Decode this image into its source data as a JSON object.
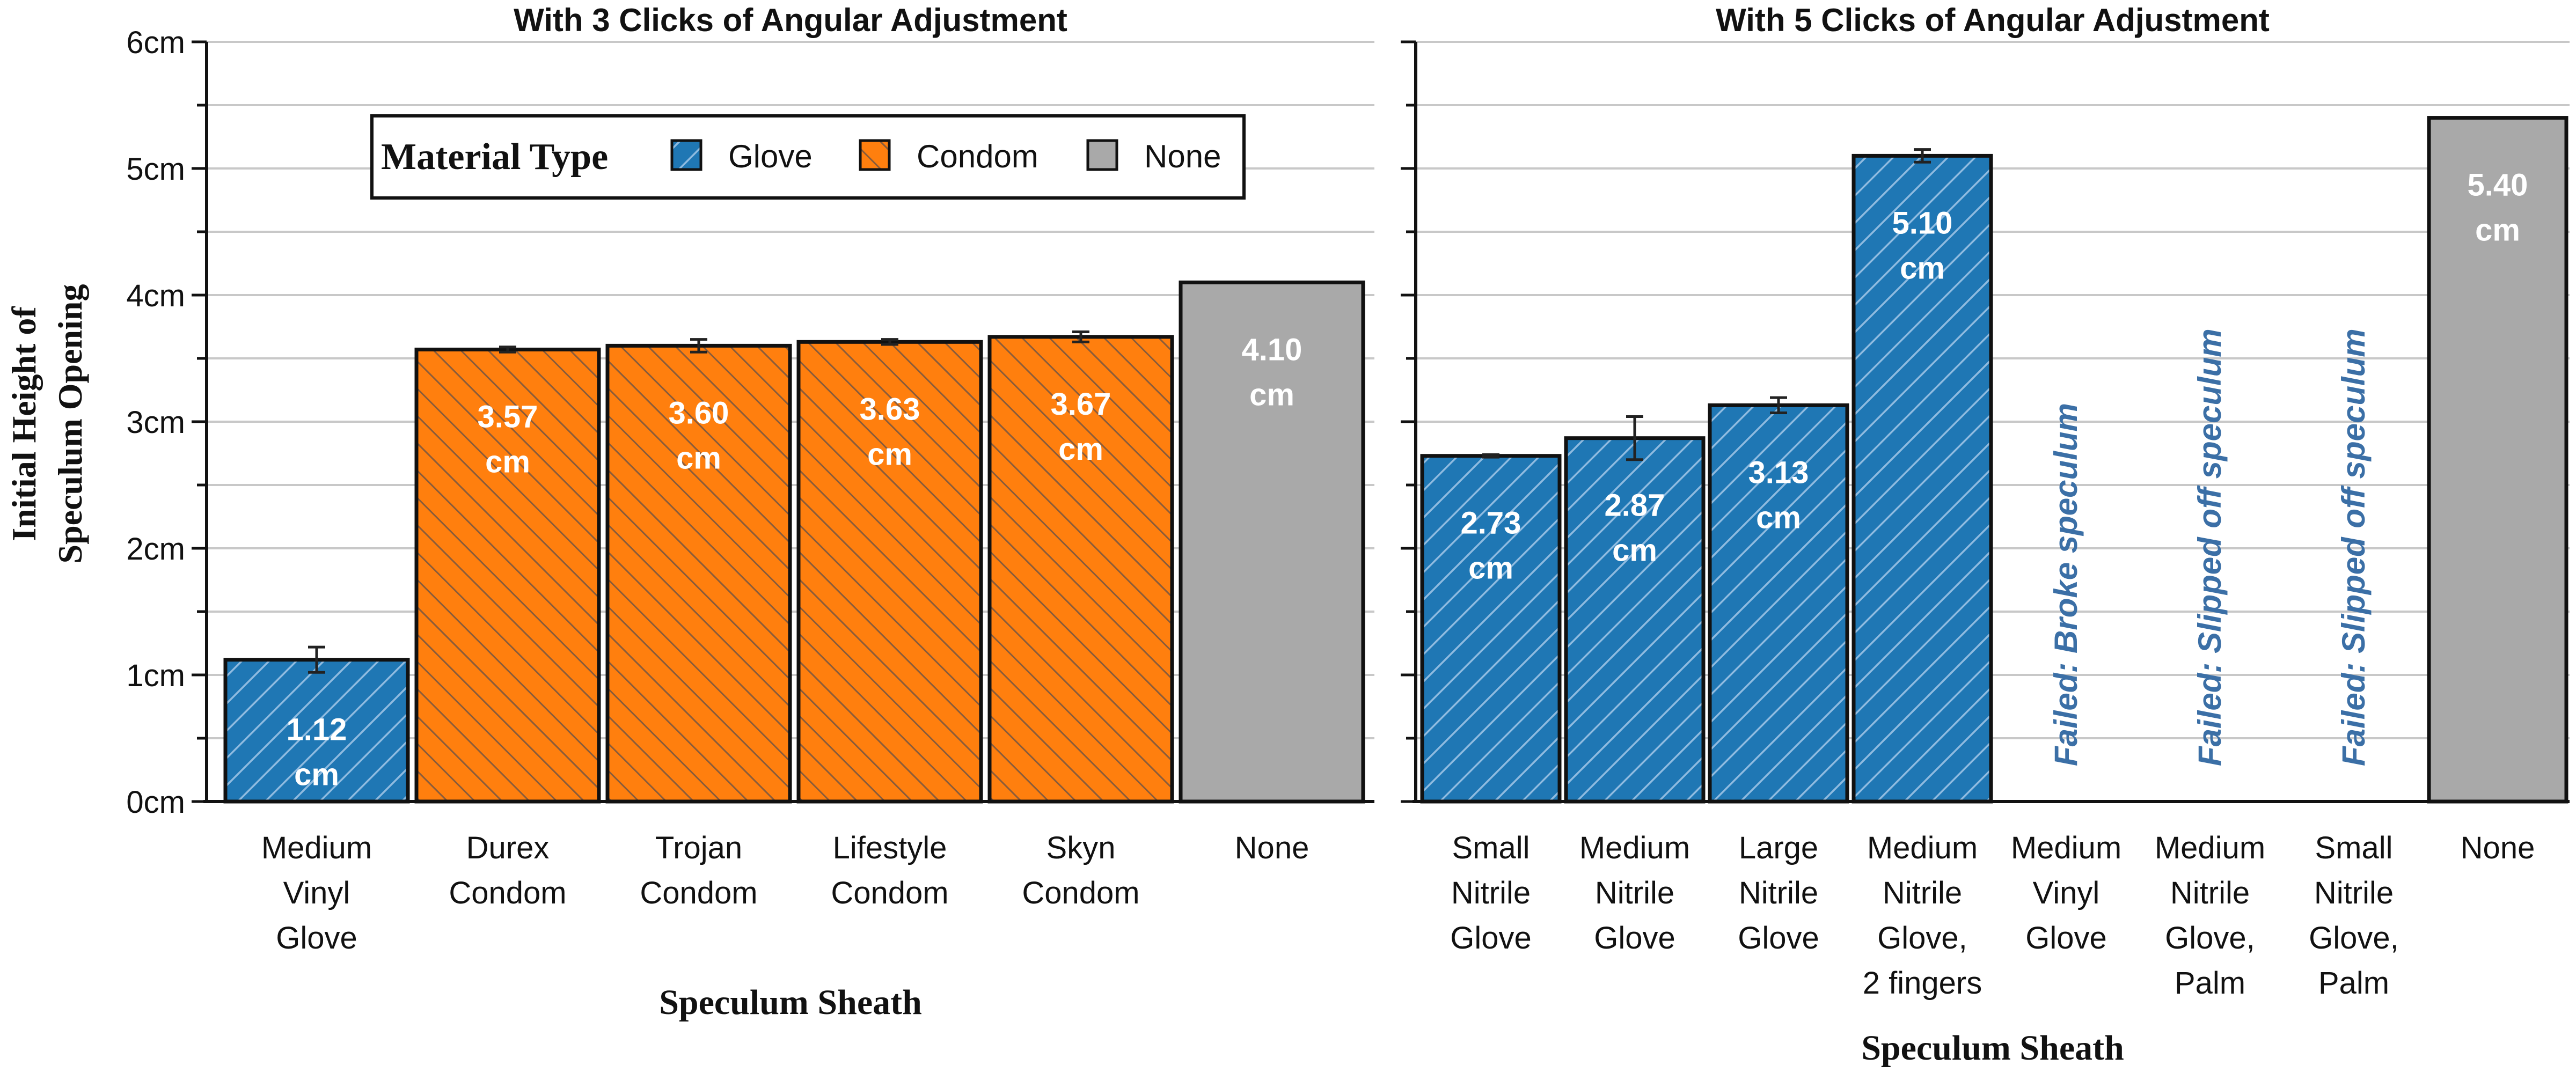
{
  "chart_data": [
    {
      "type": "bar",
      "title": "With 3 Clicks of Angular Adjustment",
      "xlabel": "Speculum Sheath",
      "ylabel": "Initial Height of Speculum Opening",
      "ylim": [
        0,
        6
      ],
      "y_ticks": [
        "0cm",
        "1cm",
        "2cm",
        "3cm",
        "4cm",
        "5cm",
        "6cm"
      ],
      "grid": true,
      "legend": {
        "title": "Material Type",
        "placement": "top-left",
        "entries": [
          {
            "label": "Glove",
            "color": "#1f77b4",
            "hatch": true
          },
          {
            "label": "Condom",
            "color": "#ff7f0e",
            "hatch": true
          },
          {
            "label": "None",
            "color": "#a9a9a9",
            "hatch": false
          }
        ]
      },
      "bars": [
        {
          "category": [
            "Medium",
            "Vinyl",
            "Glove"
          ],
          "value": 1.12,
          "error": 0.1,
          "material": "Glove",
          "label": [
            "1.12",
            "cm"
          ]
        },
        {
          "category": [
            "Durex",
            "Condom"
          ],
          "value": 3.57,
          "error": 0.02,
          "material": "Condom",
          "label": [
            "3.57",
            "cm"
          ]
        },
        {
          "category": [
            "Trojan",
            "Condom"
          ],
          "value": 3.6,
          "error": 0.05,
          "material": "Condom",
          "label": [
            "3.60",
            "cm"
          ]
        },
        {
          "category": [
            "Lifestyle",
            "Condom"
          ],
          "value": 3.63,
          "error": 0.02,
          "material": "Condom",
          "label": [
            "3.63",
            "cm"
          ]
        },
        {
          "category": [
            "Skyn",
            "Condom"
          ],
          "value": 3.67,
          "error": 0.04,
          "material": "Condom",
          "label": [
            "3.67",
            "cm"
          ]
        },
        {
          "category": [
            "None"
          ],
          "value": 4.1,
          "error": 0,
          "material": "None",
          "label": [
            "4.10",
            "cm"
          ]
        }
      ]
    },
    {
      "type": "bar",
      "title": "With 5 Clicks of Angular Adjustment",
      "xlabel": "Speculum Sheath",
      "ylim": [
        0,
        6
      ],
      "grid": true,
      "bars": [
        {
          "category": [
            "Small",
            "Nitrile",
            "Glove"
          ],
          "value": 2.73,
          "error": 0.01,
          "material": "Glove",
          "label": [
            "2.73",
            "cm"
          ]
        },
        {
          "category": [
            "Medium",
            "Nitrile",
            "Glove"
          ],
          "value": 2.87,
          "error": 0.17,
          "material": "Glove",
          "label": [
            "2.87",
            "cm"
          ]
        },
        {
          "category": [
            "Large",
            "Nitrile",
            "Glove"
          ],
          "value": 3.13,
          "error": 0.06,
          "material": "Glove",
          "label": [
            "3.13",
            "cm"
          ]
        },
        {
          "category": [
            "Medium",
            "Nitrile",
            "Glove,",
            "2 fingers"
          ],
          "value": 5.1,
          "error": 0.05,
          "material": "Glove",
          "label": [
            "5.10",
            "cm"
          ]
        },
        {
          "category": [
            "Medium",
            "Vinyl",
            "Glove"
          ],
          "value": null,
          "material": "Glove",
          "failed": "Failed: Broke speculum"
        },
        {
          "category": [
            "Medium",
            "Nitrile",
            "Glove,",
            "Palm"
          ],
          "value": null,
          "material": "Glove",
          "failed": "Failed: Slipped off speculum"
        },
        {
          "category": [
            "Small",
            "Nitrile",
            "Glove,",
            "Palm"
          ],
          "value": null,
          "material": "Glove",
          "failed": "Failed: Slipped off speculum"
        },
        {
          "category": [
            "None"
          ],
          "value": 5.4,
          "error": 0,
          "material": "None",
          "label": [
            "5.40",
            "cm"
          ]
        }
      ]
    }
  ]
}
